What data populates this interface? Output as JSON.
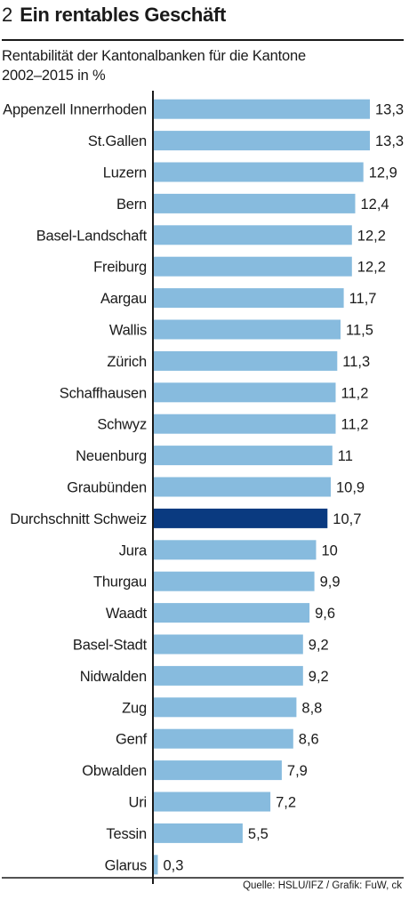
{
  "header": {
    "figure_number": "2",
    "title": "Ein rentables Geschäft",
    "subtitle_line1": "Rentabilität der Kantonalbanken für die Kantone",
    "subtitle_line2": "2002–2015 in %"
  },
  "source": "Quelle: HSLU/IFZ / Grafik: FuW, ck",
  "colors": {
    "bar": "#87bbde",
    "highlight": "#0a3a80",
    "axis": "#1a1a1a",
    "separator": "#ffffff"
  },
  "chart_data": {
    "type": "bar",
    "orientation": "horizontal",
    "categories": [
      "Appenzell Innerrhoden",
      "St.Gallen",
      "Luzern",
      "Bern",
      "Basel-Landschaft",
      "Freiburg",
      "Aargau",
      "Wallis",
      "Zürich",
      "Schaffhausen",
      "Schwyz",
      "Neuenburg",
      "Graubünden",
      "Durchschnitt Schweiz",
      "Jura",
      "Thurgau",
      "Waadt",
      "Basel-Stadt",
      "Nidwalden",
      "Zug",
      "Genf",
      "Obwalden",
      "Uri",
      "Tessin",
      "Glarus"
    ],
    "values": [
      13.3,
      13.3,
      12.9,
      12.4,
      12.2,
      12.2,
      11.7,
      11.5,
      11.3,
      11.2,
      11.2,
      11,
      10.9,
      10.7,
      10,
      9.9,
      9.6,
      9.2,
      9.2,
      8.8,
      8.6,
      7.9,
      7.2,
      5.5,
      0.3
    ],
    "value_labels": [
      "13,3",
      "13,3",
      "12,9",
      "12,4",
      "12,2",
      "12,2",
      "11,7",
      "11,5",
      "11,3",
      "11,2",
      "11,2",
      "11",
      "10,9",
      "10,7",
      "10",
      "9,9",
      "9,6",
      "9,2",
      "9,2",
      "8,8",
      "8,6",
      "7,9",
      "7,2",
      "5,5",
      "0,3"
    ],
    "highlight_category": "Durchschnitt Schweiz",
    "xlim": [
      0,
      13.3
    ],
    "grid": false
  }
}
